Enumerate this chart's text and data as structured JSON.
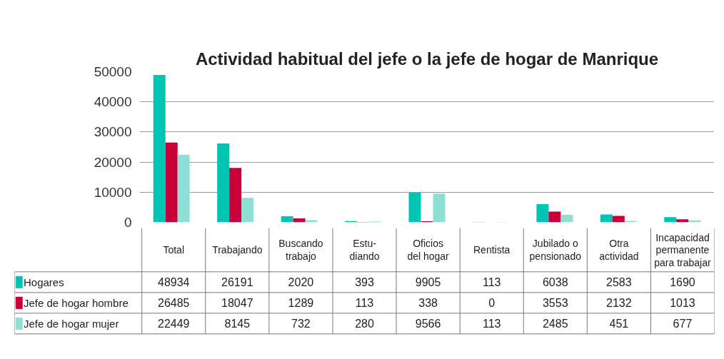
{
  "chart_data": {
    "type": "bar",
    "title": "Actividad habitual del jefe o la jefe de hogar de Manrique",
    "categories": [
      "Total",
      "Trabajando",
      "Buscando\ntrabajo",
      "Estu-\ndiando",
      "Oficios\ndel hogar",
      "Rentista",
      "Jubilado o\npensionado",
      "Otra\nactividad",
      "Incapacidad\npermanente\npara trabajar"
    ],
    "series": [
      {
        "name": "Hogares",
        "color": "#00c5b5",
        "values": [
          48934,
          26191,
          2020,
          393,
          9905,
          113,
          6038,
          2583,
          1690
        ]
      },
      {
        "name": "Jefe de hogar hombre",
        "color": "#c8003a",
        "values": [
          26485,
          18047,
          1289,
          113,
          338,
          0,
          3553,
          2132,
          1013
        ]
      },
      {
        "name": "Jefe de hogar mujer",
        "color": "#8fe0d4",
        "values": [
          22449,
          8145,
          732,
          280,
          9566,
          113,
          2485,
          451,
          677
        ]
      }
    ],
    "ylim": [
      0,
      50000
    ],
    "yticks": [
      0,
      10000,
      20000,
      30000,
      40000,
      50000
    ],
    "grid": "y",
    "legend": "bottom",
    "data_labels": true
  }
}
